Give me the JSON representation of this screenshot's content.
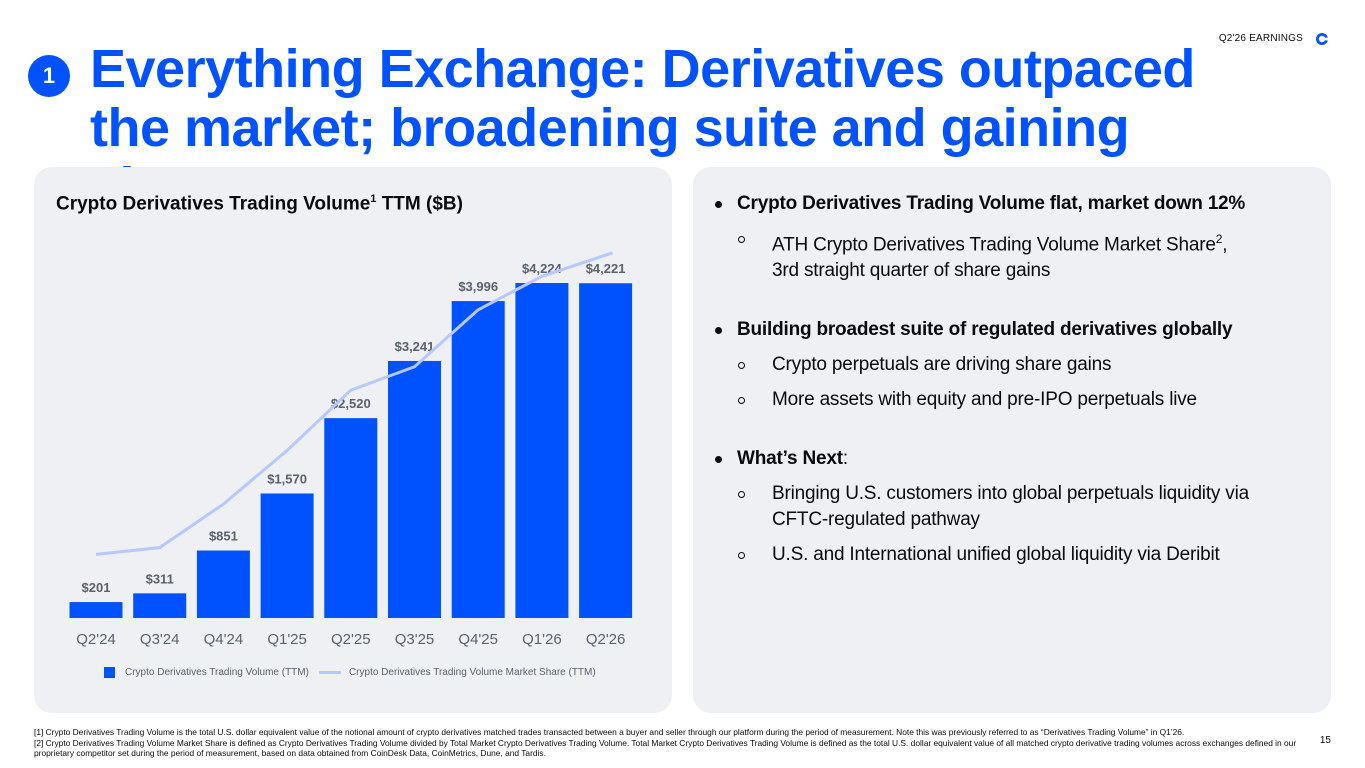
{
  "header": {
    "tag": "Q2'26 EARNINGS",
    "logo_icon": "coinbase-logo-icon"
  },
  "step_number": "1",
  "title": {
    "line1": "Everything Exchange: Derivatives outpaced",
    "line2": "the market; broadening suite and gaining share"
  },
  "chart_data": {
    "type": "bar",
    "title": "Crypto Derivatives Trading Volume",
    "title_sup": "1",
    "title_suffix": " TTM ($B)",
    "categories": [
      "Q2'24",
      "Q3'24",
      "Q4'24",
      "Q1'25",
      "Q2'25",
      "Q3'25",
      "Q4'25",
      "Q1'26",
      "Q2'26"
    ],
    "series": [
      {
        "name": "Crypto Derivatives Trading Volume (TTM)",
        "type": "bar",
        "values": [
          201,
          311,
          851,
          1570,
          2520,
          3241,
          3996,
          4224,
          4221
        ],
        "labels": [
          "$201",
          "$311",
          "$851",
          "$1,570",
          "$2,520",
          "$3,241",
          "$3,996",
          "$4,224",
          "$4,221"
        ],
        "color": "#0052ff"
      },
      {
        "name": "Crypto Derivatives Trading Volume Market Share (TTM)",
        "type": "line",
        "relative_values": [
          0.19,
          0.21,
          0.34,
          0.5,
          0.68,
          0.75,
          0.92,
          1.02,
          1.09
        ],
        "color": "#b5c8ff"
      }
    ],
    "ylim": [
      0,
      4224
    ],
    "grid": false,
    "legend_position": "bottom"
  },
  "bullets": [
    {
      "text": "Crypto Derivatives Trading Volume flat, market down 12%",
      "subs": [
        {
          "text": "ATH Crypto Derivatives Trading Volume Market Share",
          "sup": "2",
          "tail": ",",
          "line2": "3rd straight quarter of share gains"
        }
      ]
    },
    {
      "text": "Building broadest suite of regulated derivatives globally",
      "subs": [
        {
          "text": "Crypto perpetuals are driving share gains"
        },
        {
          "text": "More assets with equity and pre-IPO perpetuals live"
        }
      ]
    },
    {
      "text": "What’s Next",
      "tail": ":",
      "subs": [
        {
          "text": "Bringing U.S. customers into global perpetuals liquidity via",
          "line2": "CFTC-regulated pathway"
        },
        {
          "text": "U.S. and International unified global liquidity via Deribit"
        }
      ]
    }
  ],
  "footnotes": {
    "line1": "[1] Crypto Derivatives Trading Volume is the total U.S. dollar equivalent value of the notional amount of crypto derivatives matched trades transacted between a buyer and seller through our platform during the period of measurement. Note this was previously referred to as “Derivatives Trading Volume” in Q1’26.",
    "line2": "[2] Crypto Derivatives Trading Volume Market Share is defined as Crypto Derivatives Trading Volume divided by Total Market Crypto Derivatives Trading Volume. Total Market Crypto Derivatives Trading Volume is defined as the total U.S. dollar equivalent value of all matched crypto derivative trading volumes across exchanges defined in our proprietary competitor set during the period of measurement, based on data obtained from CoinDesk Data, CoinMetrics, Dune, and Tardis."
  },
  "page_number": "15"
}
